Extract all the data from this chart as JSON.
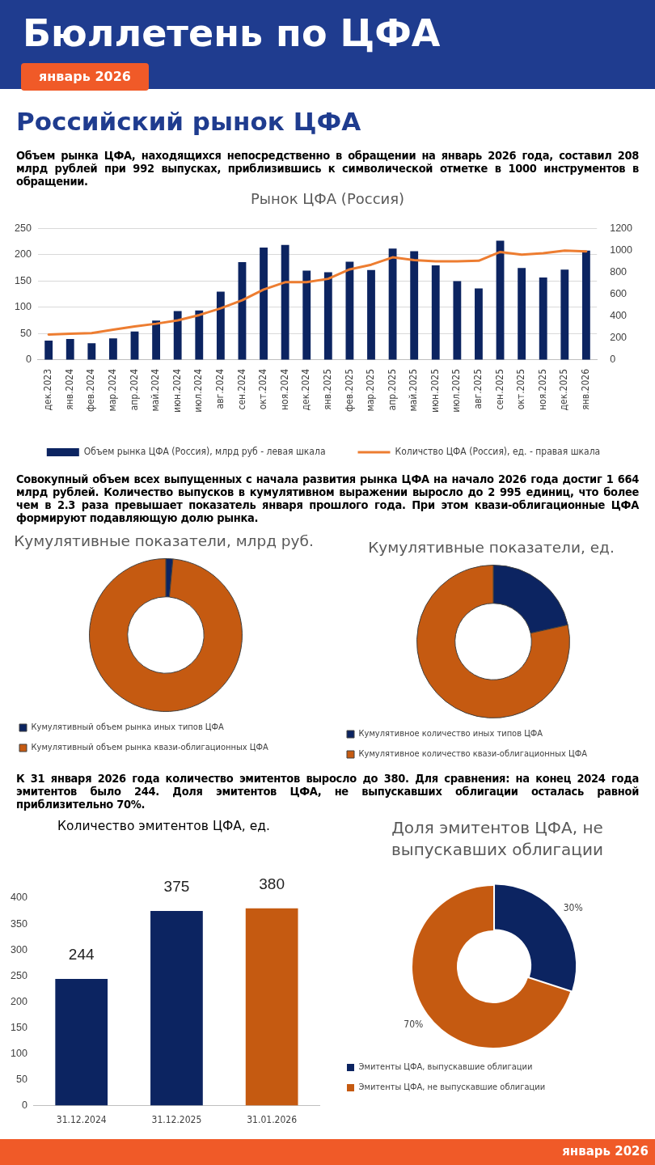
{
  "chart_data": [
    {
      "type": "other",
      "title": "Бюллетень по ЦФА",
      "subtitle": "январь 2026",
      "annotations": [
        "Российский рынок ЦФА",
        "январь 2026"
      ]
    },
    {
      "type": "bar",
      "title": "Рынок ЦФА (Россия)",
      "annotations": [
        "Объем рынка ЦФА, находящихся непосредственно в обращении на январь 2026 года, составил 208 млрд рублей при 992 выпусках, приблизившись к символической отметке в 1000 инструментов в обращении."
      ],
      "categories": [
        "дек.2023",
        "янв.2024",
        "фев.2024",
        "мар.2024",
        "апр.2024",
        "май.2024",
        "июн.2024",
        "июл.2024",
        "авг.2024",
        "сен.2024",
        "окт.2024",
        "ноя.2024",
        "дек.2024",
        "янв.2025",
        "фев.2025",
        "мар.2025",
        "апр.2025",
        "май.2025",
        "июн.2025",
        "июл.2025",
        "авг.2025",
        "сен.2025",
        "окт.2025",
        "ноя.2025",
        "дек.2025",
        "янв.2026"
      ],
      "series": [
        {
          "name": "Объем рынка ЦФА (Россия), млрд руб - левая шкала",
          "type": "bar",
          "color": "#0c2461",
          "values": [
            37,
            40,
            32,
            41,
            54,
            75,
            93,
            94,
            130,
            186,
            214,
            219,
            170,
            167,
            187,
            171,
            212,
            207,
            180,
            150,
            136,
            227,
            175,
            157,
            172,
            208
          ]
        },
        {
          "name": "Количство ЦФА (Россия), ед. - правая шкала",
          "type": "line",
          "axis": "y2",
          "color": "#ed7d31",
          "values": [
            233,
            239,
            245,
            276,
            306,
            331,
            361,
            410,
            471,
            545,
            643,
            710,
            710,
            741,
            827,
            870,
            937,
            912,
            900,
            900,
            906,
            986,
            961,
            974,
            998,
            992
          ]
        }
      ],
      "ylim": [
        0,
        250
      ],
      "yticks": [
        0,
        50,
        100,
        150,
        200,
        250
      ],
      "y2lim": [
        0,
        1200
      ],
      "y2ticks": [
        0,
        200,
        400,
        600,
        800,
        1000,
        1200
      ],
      "grid": "y",
      "legend": "bottom",
      "marker": "none",
      "line_style": "solid"
    },
    {
      "type": "donut",
      "title": "Кумулятивные показатели, млрд руб.",
      "annotations": [
        "Совокупный объем всех выпущенных с начала развития рынка ЦФА на начало 2026 года достиг 1 664 млрд рублей. Количество выпусков в кумулятивном выражении выросло до 2 995 единиц, что более чем в 2.3 раза превышает показатель января прошлого года. При этом квази-облигационные ЦФА формируют подавляющую долю рынка."
      ],
      "categories": [
        "Кумулятивный объем рынка иных типов ЦФА",
        "Кумулятивный объем рынка квази-облигационных ЦФА"
      ],
      "values": [
        1.5,
        98.5
      ],
      "colors": [
        "#0c2461",
        "#c55a11"
      ],
      "legend": "bottom"
    },
    {
      "type": "donut",
      "title": "Кумулятивные показатели, ед.",
      "categories": [
        "Кумулятивное количество иных типов ЦФА",
        "Кумулятивное количество квази-облигационных ЦФА"
      ],
      "values": [
        21.5,
        78.5
      ],
      "colors": [
        "#0c2461",
        "#c55a11"
      ],
      "legend": "bottom"
    },
    {
      "type": "bar",
      "title": "Количество эмитентов ЦФА, ед.",
      "annotations": [
        "К 31 января 2026 года количество эмитентов выросло до 380. Для сравнения: на конец 2024 года эмитентов было 244. Доля эмитентов ЦФА, не выпускавших облигации осталась равной приблизительно 70%."
      ],
      "categories": [
        "31.12.2024",
        "31.12.2025",
        "31.01.2026"
      ],
      "values": [
        244,
        375,
        380
      ],
      "colors": [
        "#0c2461",
        "#0c2461",
        "#c55a11"
      ],
      "data_labels": true,
      "ylim": [
        0,
        400
      ],
      "yticks": [
        0,
        50,
        100,
        150,
        200,
        250,
        300,
        350,
        400
      ],
      "grid": false
    },
    {
      "type": "donut",
      "title": "Доля эмитентов ЦФА, не выпускавших облигации",
      "categories": [
        "Эмитенты ЦФА, выпускавшие облигации",
        "Эмитенты ЦФА, не выпускавшие облигации"
      ],
      "values": [
        30,
        70
      ],
      "value_labels": [
        "30%",
        "70%"
      ],
      "colors": [
        "#0c2461",
        "#c55a11"
      ],
      "legend": "bottom"
    }
  ]
}
